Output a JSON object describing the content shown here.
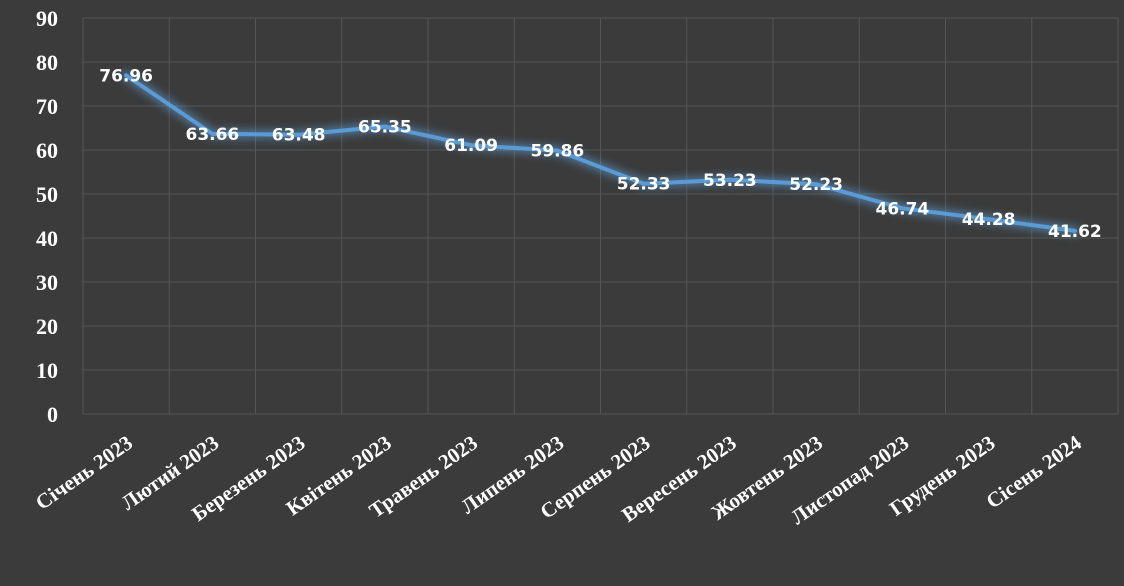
{
  "chart_data": {
    "type": "line",
    "categories": [
      "Січень 2023",
      "Лютий 2023",
      "Березень 2023",
      "Квітень 2023",
      "Травень 2023",
      "Липень 2023",
      "Серпень 2023",
      "Вересень 2023",
      "Жовтень 2023",
      "Листопад 2023",
      "Грудень 2023",
      "Сісень 2024"
    ],
    "values": [
      76.96,
      63.66,
      63.48,
      65.35,
      61.09,
      59.86,
      52.33,
      53.23,
      52.23,
      46.74,
      44.28,
      41.62
    ],
    "data_labels": [
      "76.96",
      "63.66",
      "63.48",
      "65.35",
      "61.09",
      "59.86",
      "52.33",
      "53.23",
      "52.23",
      "46.74",
      "44.28",
      "41.62"
    ],
    "yticks": [
      "0",
      "10",
      "20",
      "30",
      "40",
      "50",
      "60",
      "70",
      "80",
      "90"
    ],
    "ylim": [
      0,
      90
    ],
    "grid": true,
    "colors": {
      "background": "#3b3b3b",
      "line": "#5b9bd5",
      "glow": "#5b9bd5",
      "grid": "#565656",
      "text": "#ffffff"
    }
  }
}
